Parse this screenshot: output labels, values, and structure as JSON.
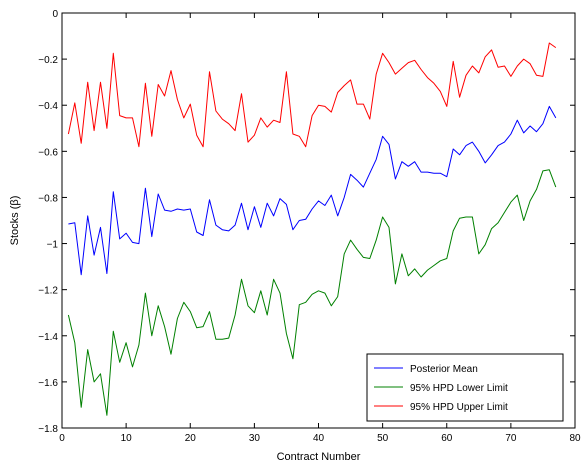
{
  "chart_data": {
    "type": "line",
    "title": "",
    "xlabel": "Contract Number",
    "ylabel": "Stocks (β)",
    "xlim": [
      0,
      80
    ],
    "ylim": [
      -1.8,
      0
    ],
    "xticks": [
      0,
      10,
      20,
      30,
      40,
      50,
      60,
      70,
      80
    ],
    "yticks": [
      -1.8,
      -1.6,
      -1.4,
      -1.2,
      -1,
      -0.8,
      -0.6,
      -0.4,
      -0.2,
      0
    ],
    "xtick_labels": [
      "0",
      "10",
      "20",
      "30",
      "40",
      "50",
      "60",
      "70",
      "80"
    ],
    "ytick_labels": [
      "−1.8",
      "−1.6",
      "−1.4",
      "−1.2",
      "−1",
      "−0.8",
      "−0.6",
      "−0.4",
      "−0.2",
      "0"
    ],
    "grid": false,
    "legend_position": "bottom-right",
    "x": [
      1,
      2,
      3,
      4,
      5,
      6,
      7,
      8,
      9,
      10,
      11,
      12,
      13,
      14,
      15,
      16,
      17,
      18,
      19,
      20,
      21,
      22,
      23,
      24,
      25,
      26,
      27,
      28,
      29,
      30,
      31,
      32,
      33,
      34,
      35,
      36,
      37,
      38,
      39,
      40,
      41,
      42,
      43,
      44,
      45,
      46,
      47,
      48,
      49,
      50,
      51,
      52,
      53,
      54,
      55,
      56,
      57,
      58,
      59,
      60,
      61,
      62,
      63,
      64,
      65,
      66,
      67,
      68,
      69,
      70,
      71,
      72,
      73,
      74,
      75,
      76,
      77
    ],
    "series": [
      {
        "name": "Posterior Mean",
        "color": "#0000ff",
        "values": [
          -0.915,
          -0.91,
          -1.135,
          -0.88,
          -1.05,
          -0.93,
          -1.13,
          -0.775,
          -0.98,
          -0.955,
          -0.995,
          -1.0,
          -0.76,
          -0.97,
          -0.785,
          -0.855,
          -0.86,
          -0.85,
          -0.855,
          -0.85,
          -0.95,
          -0.965,
          -0.81,
          -0.92,
          -0.94,
          -0.945,
          -0.92,
          -0.825,
          -0.94,
          -0.84,
          -0.93,
          -0.825,
          -0.88,
          -0.805,
          -0.83,
          -0.94,
          -0.9,
          -0.895,
          -0.85,
          -0.815,
          -0.835,
          -0.79,
          -0.88,
          -0.8,
          -0.7,
          -0.725,
          -0.755,
          -0.695,
          -0.635,
          -0.535,
          -0.57,
          -0.72,
          -0.645,
          -0.665,
          -0.645,
          -0.69,
          -0.69,
          -0.695,
          -0.695,
          -0.71,
          -0.59,
          -0.615,
          -0.575,
          -0.56,
          -0.6,
          -0.65,
          -0.615,
          -0.575,
          -0.56,
          -0.525,
          -0.465,
          -0.52,
          -0.49,
          -0.515,
          -0.48,
          -0.405,
          -0.455
        ]
      },
      {
        "name": "95% HPD Lower Limit",
        "color": "#008000",
        "values": [
          -1.31,
          -1.43,
          -1.71,
          -1.46,
          -1.6,
          -1.565,
          -1.745,
          -1.38,
          -1.515,
          -1.43,
          -1.535,
          -1.44,
          -1.215,
          -1.4,
          -1.27,
          -1.36,
          -1.48,
          -1.325,
          -1.255,
          -1.295,
          -1.365,
          -1.36,
          -1.295,
          -1.415,
          -1.415,
          -1.41,
          -1.31,
          -1.155,
          -1.27,
          -1.3,
          -1.205,
          -1.31,
          -1.155,
          -1.215,
          -1.39,
          -1.5,
          -1.265,
          -1.255,
          -1.22,
          -1.205,
          -1.215,
          -1.27,
          -1.23,
          -1.045,
          -0.985,
          -1.025,
          -1.06,
          -1.065,
          -0.985,
          -0.885,
          -0.93,
          -1.175,
          -1.045,
          -1.14,
          -1.11,
          -1.145,
          -1.115,
          -1.095,
          -1.075,
          -1.065,
          -0.945,
          -0.89,
          -0.885,
          -0.885,
          -1.045,
          -1.005,
          -0.935,
          -0.91,
          -0.865,
          -0.82,
          -0.79,
          -0.9,
          -0.815,
          -0.765,
          -0.685,
          -0.68,
          -0.755
        ]
      },
      {
        "name": "95% HPD Upper Limit",
        "color": "#ff0000",
        "values": [
          -0.525,
          -0.39,
          -0.565,
          -0.3,
          -0.51,
          -0.3,
          -0.5,
          -0.175,
          -0.445,
          -0.455,
          -0.455,
          -0.58,
          -0.305,
          -0.535,
          -0.31,
          -0.36,
          -0.25,
          -0.375,
          -0.455,
          -0.395,
          -0.53,
          -0.58,
          -0.255,
          -0.425,
          -0.46,
          -0.48,
          -0.51,
          -0.35,
          -0.56,
          -0.53,
          -0.455,
          -0.495,
          -0.465,
          -0.475,
          -0.255,
          -0.525,
          -0.535,
          -0.58,
          -0.445,
          -0.4,
          -0.405,
          -0.43,
          -0.345,
          -0.315,
          -0.29,
          -0.395,
          -0.395,
          -0.46,
          -0.265,
          -0.175,
          -0.215,
          -0.265,
          -0.24,
          -0.215,
          -0.205,
          -0.245,
          -0.28,
          -0.305,
          -0.34,
          -0.405,
          -0.21,
          -0.365,
          -0.27,
          -0.23,
          -0.26,
          -0.19,
          -0.16,
          -0.235,
          -0.23,
          -0.275,
          -0.23,
          -0.2,
          -0.22,
          -0.27,
          -0.275,
          -0.13,
          -0.15
        ]
      }
    ]
  }
}
